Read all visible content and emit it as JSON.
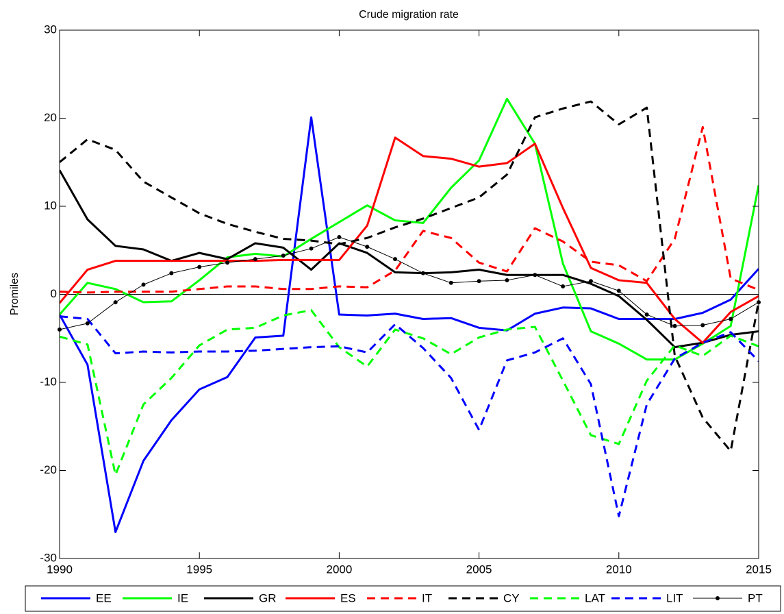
{
  "chart_data": {
    "type": "line",
    "title": "Crude migration rate",
    "y_label": "Promiles",
    "x": [
      1990,
      1991,
      1992,
      1993,
      1994,
      1995,
      1996,
      1997,
      1998,
      1999,
      2000,
      2001,
      2002,
      2003,
      2004,
      2005,
      2006,
      2007,
      2008,
      2009,
      2010,
      2011,
      2012,
      2013,
      2014,
      2015
    ],
    "xlim": [
      1990,
      2015
    ],
    "xticks": [
      1990,
      1995,
      2000,
      2005,
      2010,
      2015
    ],
    "ylim": [
      -30,
      30
    ],
    "yticks": [
      -30,
      -20,
      -10,
      0,
      10,
      20,
      30
    ],
    "legend": "bottom",
    "series": [
      {
        "name": "EE",
        "color": "#0000ff",
        "linestyle": "solid",
        "linewidth": 3,
        "values": [
          -2.3,
          -8,
          -27,
          -18.9,
          -14.3,
          -10.8,
          -9.4,
          -4.9,
          -4.7,
          20.1,
          -2.3,
          -2.4,
          -2.2,
          -2.8,
          -2.7,
          -3.8,
          -4.1,
          -2.2,
          -1.5,
          -1.6,
          -2.8,
          -2.8,
          -2.8,
          -2.1,
          -0.6,
          2.9
        ]
      },
      {
        "name": "IE",
        "color": "#00ff00",
        "linestyle": "solid",
        "linewidth": 3,
        "values": [
          -2.3,
          1.3,
          0.6,
          -0.9,
          -0.8,
          1.6,
          4.2,
          4.6,
          4.3,
          6.3,
          8.2,
          10.1,
          8.4,
          8.1,
          12.1,
          15.2,
          22.2,
          17.1,
          3.5,
          -4.2,
          -5.6,
          -7.4,
          -7.4,
          -5.6,
          -3.6,
          12.4
        ]
      },
      {
        "name": "GR",
        "color": "#000000",
        "linestyle": "solid",
        "linewidth": 3,
        "values": [
          14.1,
          8.5,
          5.5,
          5.1,
          3.8,
          4.7,
          4.0,
          5.8,
          5.3,
          2.8,
          5.8,
          4.7,
          2.5,
          2.4,
          2.5,
          2.8,
          2.2,
          2.2,
          2.2,
          1.2,
          -0.2,
          -2.9,
          -6.0,
          -5.5,
          -4.6,
          -4.2
        ]
      },
      {
        "name": "ES",
        "color": "#ff0000",
        "linestyle": "solid",
        "linewidth": 3,
        "values": [
          -1.0,
          2.8,
          3.8,
          3.8,
          3.8,
          3.8,
          3.8,
          3.8,
          3.9,
          3.9,
          3.9,
          7.8,
          17.8,
          15.7,
          15.4,
          14.5,
          14.9,
          17.1,
          9.8,
          3.0,
          1.6,
          1.3,
          -2.8,
          -5.5,
          -2.0,
          -0.2
        ]
      },
      {
        "name": "IT",
        "color": "#ff0000",
        "linestyle": "dashed",
        "linewidth": 3,
        "values": [
          0.3,
          0.2,
          0.3,
          0.3,
          0.3,
          0.6,
          0.9,
          0.9,
          0.6,
          0.6,
          0.9,
          0.8,
          2.7,
          7.2,
          6.4,
          3.6,
          2.6,
          7.5,
          6.0,
          3.7,
          3.3,
          1.5,
          6.3,
          19.0,
          1.8,
          0.5
        ]
      },
      {
        "name": "CY",
        "color": "#000000",
        "linestyle": "dashed",
        "linewidth": 3,
        "values": [
          15.0,
          17.6,
          16.4,
          12.8,
          11.0,
          9.2,
          8.0,
          7.1,
          6.3,
          6.1,
          5.7,
          6.4,
          7.6,
          8.6,
          9.8,
          11.0,
          13.6,
          20.1,
          21.1,
          21.9,
          19.3,
          21.2,
          -7.0,
          -14.0,
          -17.8,
          -0.8
        ]
      },
      {
        "name": "LAT",
        "color": "#00ff00",
        "linestyle": "dashed",
        "linewidth": 3,
        "values": [
          -4.8,
          -5.7,
          -20.5,
          -12.5,
          -9.5,
          -5.8,
          -4.0,
          -3.8,
          -2.4,
          -1.8,
          -6.0,
          -8.2,
          -4.0,
          -5.0,
          -6.8,
          -4.9,
          -4.0,
          -3.7,
          -9.8,
          -16.0,
          -17.0,
          -9.8,
          -5.8,
          -7.0,
          -4.7,
          -5.9
        ]
      },
      {
        "name": "LIT",
        "color": "#0000ff",
        "linestyle": "dashed",
        "linewidth": 3,
        "values": [
          -2.5,
          -2.8,
          -6.7,
          -6.5,
          -6.6,
          -6.5,
          -6.5,
          -6.4,
          -6.2,
          -6.0,
          -5.9,
          -6.6,
          -3.4,
          -6.1,
          -9.5,
          -15.4,
          -7.5,
          -6.6,
          -5.0,
          -10.2,
          -25.2,
          -12.5,
          -7.3,
          -5.5,
          -4.3,
          -7.6
        ]
      },
      {
        "name": "PT",
        "color": "#000000",
        "linestyle": "solid",
        "linewidth": 1,
        "marker": "dot",
        "values": [
          -4.0,
          -3.3,
          -0.9,
          1.1,
          2.4,
          3.1,
          3.6,
          4.0,
          4.4,
          5.2,
          6.5,
          5.4,
          4.0,
          2.4,
          1.3,
          1.5,
          1.6,
          2.2,
          0.9,
          1.5,
          0.4,
          -2.3,
          -3.6,
          -3.5,
          -2.8,
          -0.9
        ]
      }
    ]
  }
}
